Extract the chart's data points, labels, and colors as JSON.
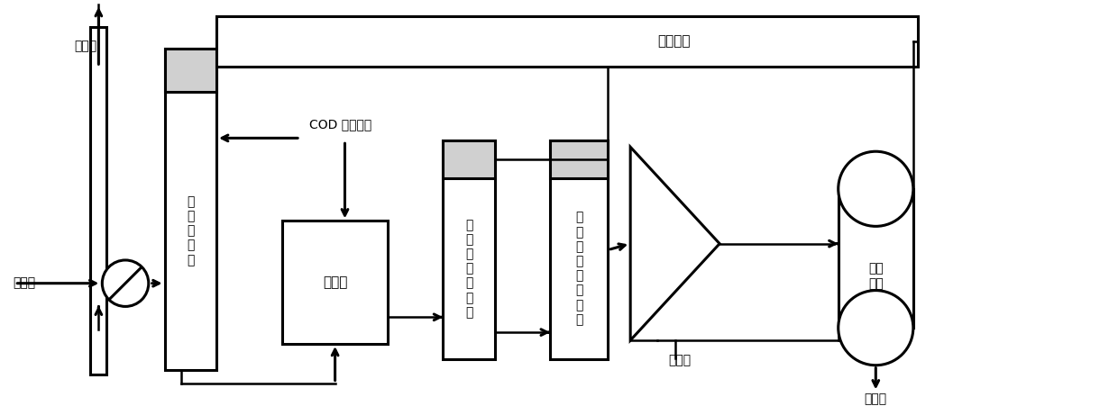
{
  "bg_color": "#ffffff",
  "line_color": "#000000",
  "labels": {
    "jing_yan_qi": "净烟气",
    "yuan_yan_qi": "原烟气",
    "cod": "COD 有机废水",
    "yi_ji_xi_tuo_ta": "一\n级\n洗\n脱\n塔",
    "tiao_jie_chi": "调节池",
    "er_ji_sheng_wu": "二\n级\n生\n物\n硫\n化\n塔",
    "sheng_wu_tong_bu": "生\n物\n同\n步\n脱\n硫\n氮\n塔",
    "chen_jiang_chi": "沉降池",
    "liu_fen_li_qi": "硫分\n离器",
    "dan_zhi_liu": "单质硫",
    "gong_yi_fei_shui": "工艺废水"
  }
}
